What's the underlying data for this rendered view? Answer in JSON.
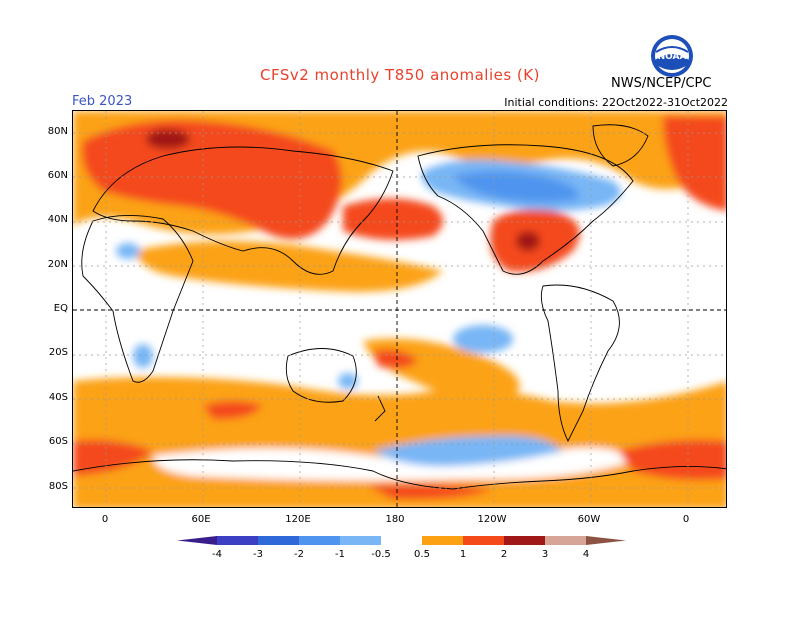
{
  "header": {
    "title": "CFSv2 monthly T850 anomalies (K)",
    "agency": "NWS/NCEP/CPC",
    "logo_text": "NOAA",
    "month": "Feb 2023",
    "initial_conditions": "Initial conditions: 22Oct2022-31Oct2022"
  },
  "map": {
    "lat_labels": [
      "80N",
      "60N",
      "40N",
      "20N",
      "EQ",
      "20S",
      "40S",
      "60S",
      "80S"
    ],
    "lon_labels": [
      "0",
      "60E",
      "120E",
      "180",
      "120W",
      "60W",
      "0"
    ],
    "center_longitude": "180"
  },
  "colorbar": {
    "unit": "K",
    "ticks": [
      "-4",
      "-3",
      "-2",
      "-1",
      "-0.5",
      "0.5",
      "1",
      "2",
      "3",
      "4"
    ],
    "colors": {
      "lt_-4": "#3a1f8c",
      "-4_-3": "#3c3fc4",
      "-3_-2": "#2f68d9",
      "-2_-1": "#4f95ef",
      "-1_-0.5": "#78b6f5",
      "-0.5_0.5": "#ffffff",
      "0.5_1": "#fca212",
      "1_2": "#f44a1a",
      "2_3": "#a11818",
      "3_4": "#d7a597",
      "gt_4": "#8c5342"
    }
  }
}
